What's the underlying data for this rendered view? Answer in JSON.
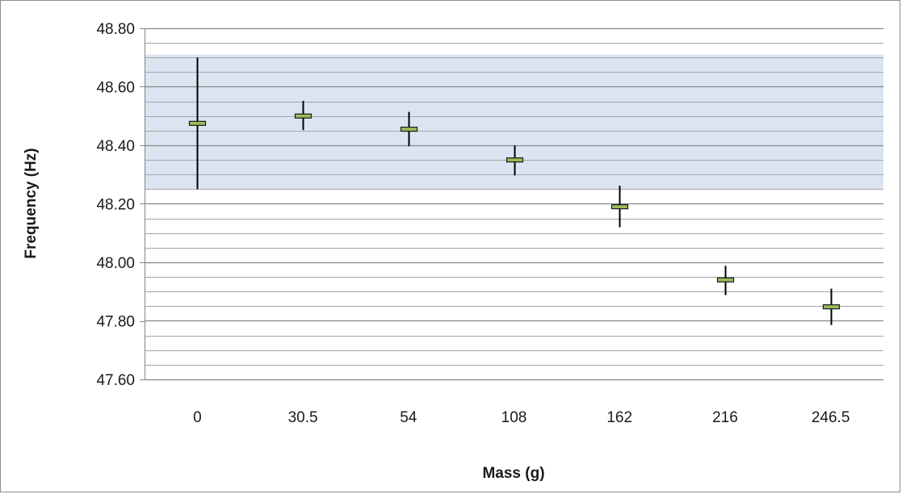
{
  "chart_data": {
    "type": "scatter",
    "title": "",
    "xlabel": "Mass (g)",
    "ylabel": "Frequency (Hz)",
    "categories": [
      "0",
      "30.5",
      "54",
      "108",
      "162",
      "216",
      "246.5"
    ],
    "y_ticks": [
      "47.60",
      "47.80",
      "48.00",
      "48.20",
      "48.40",
      "48.60",
      "48.80"
    ],
    "ylim": [
      47.6,
      48.8
    ],
    "minor_gridline_step": 0.05,
    "shaded_band": {
      "low": 48.25,
      "high": 48.71,
      "color": "#dbe5f1"
    },
    "series": [
      {
        "marker": "horizontal-bar",
        "values": [
          48.475,
          48.5,
          48.455,
          48.35,
          48.19,
          47.94,
          47.848
        ],
        "error_low": [
          48.25,
          48.452,
          48.397,
          48.297,
          48.12,
          47.888,
          47.786
        ],
        "error_high": [
          48.7,
          48.552,
          48.514,
          48.4,
          48.262,
          47.988,
          47.91
        ]
      }
    ],
    "grid": true,
    "legend": "none",
    "colors": {
      "marker_fill": "#9bbb59",
      "marker_stroke": "#1a1a1a",
      "error_bar": "#000000",
      "major_grid": "#868686",
      "minor_grid": "#a6a6a6",
      "frame": "#8c8c8c"
    }
  }
}
